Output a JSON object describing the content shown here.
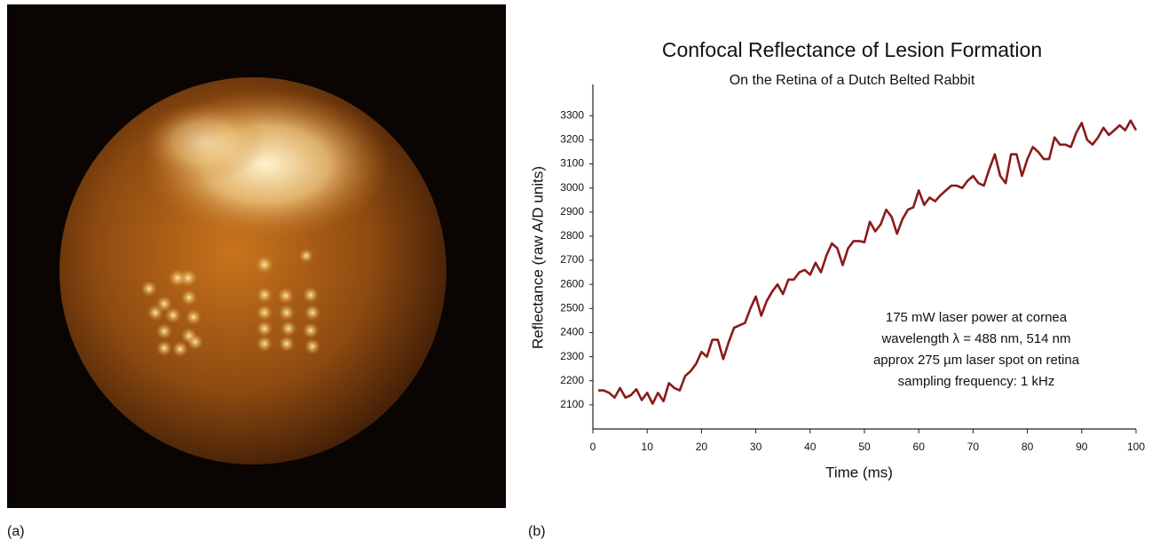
{
  "panel_labels": [
    "(a)",
    "(b)"
  ],
  "chart_data": {
    "type": "line",
    "title": "Confocal Reflectance of Lesion Formation",
    "subtitle": "On the Retina of a Dutch Belted Rabbit",
    "x_label": "Time (ms)",
    "y_label": "Reflectance (raw A/D units)",
    "annotations": [
      "175 mW laser power at cornea",
      "wavelength λ = 488 nm, 514 nm",
      "approx 275 µm laser spot on retina",
      "sampling frequency: 1 kHz"
    ],
    "x": [
      1,
      2,
      3,
      4,
      5,
      6,
      7,
      8,
      9,
      10,
      11,
      12,
      13,
      14,
      15,
      16,
      17,
      18,
      19,
      20,
      21,
      22,
      23,
      24,
      25,
      26,
      27,
      28,
      29,
      30,
      31,
      32,
      33,
      34,
      35,
      36,
      37,
      38,
      39,
      40,
      41,
      42,
      43,
      44,
      45,
      46,
      47,
      48,
      49,
      50,
      51,
      52,
      53,
      54,
      55,
      56,
      57,
      58,
      59,
      60,
      61,
      62,
      63,
      64,
      65,
      66,
      67,
      68,
      69,
      70,
      71,
      72,
      73,
      74,
      75,
      76,
      77,
      78,
      79,
      80,
      81,
      82,
      83,
      84,
      85,
      86,
      87,
      88,
      89,
      90,
      91,
      92,
      93,
      94,
      95,
      96,
      97,
      98,
      99,
      100
    ],
    "series": [
      {
        "color": "#8b1a1a",
        "values": [
          2160,
          2160,
          2150,
          2130,
          2170,
          2130,
          2140,
          2165,
          2120,
          2150,
          2105,
          2150,
          2115,
          2190,
          2170,
          2160,
          2220,
          2240,
          2270,
          2320,
          2300,
          2370,
          2370,
          2290,
          2360,
          2420,
          2430,
          2440,
          2500,
          2550,
          2470,
          2530,
          2570,
          2600,
          2560,
          2620,
          2620,
          2650,
          2660,
          2640,
          2690,
          2650,
          2720,
          2770,
          2750,
          2680,
          2750,
          2780,
          2780,
          2775,
          2860,
          2820,
          2850,
          2910,
          2880,
          2810,
          2870,
          2910,
          2920,
          2990,
          2930,
          2960,
          2945,
          2970,
          2990,
          3010,
          3010,
          3000,
          3030,
          3050,
          3020,
          3010,
          3080,
          3140,
          3050,
          3020,
          3140,
          3140,
          3050,
          3120,
          3170,
          3150,
          3120,
          3120,
          3210,
          3180,
          3180,
          3170,
          3230,
          3270,
          3200,
          3180,
          3210,
          3250,
          3220,
          3240,
          3260,
          3240,
          3280,
          3240
        ]
      }
    ],
    "xlim": [
      0,
      100
    ],
    "xticks": [
      0,
      10,
      20,
      30,
      40,
      50,
      60,
      70,
      80,
      90,
      100
    ],
    "ylim": [
      2000,
      3430
    ],
    "yticks": [
      2100,
      2200,
      2300,
      2400,
      2500,
      2600,
      2700,
      2800,
      2900,
      3000,
      3100,
      3200,
      3300
    ]
  }
}
